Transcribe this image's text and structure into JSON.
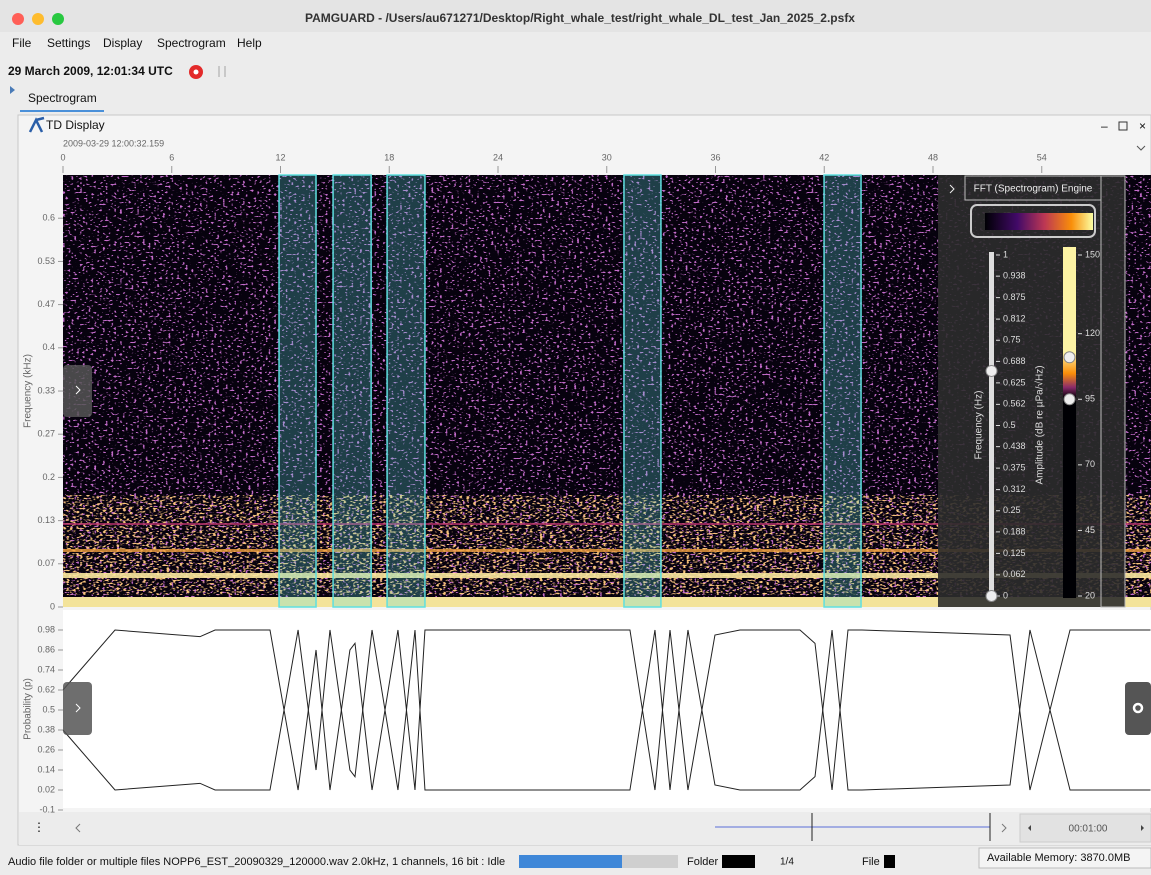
{
  "window": {
    "title": "PAMGUARD - /Users/au671271/Desktop/Right_whale_test/right_whale_DL_test_Jan_2025_2.psfx"
  },
  "menu": [
    "File",
    "Settings",
    "Display",
    "Spectrogram",
    "Help"
  ],
  "toolbar": {
    "clock": "29 March 2009, 12:01:34 UTC"
  },
  "tab": "Spectrogram",
  "panel": {
    "title": "TD Display",
    "start_time": "2009-03-29 12:00:32.159"
  },
  "chart_data": [
    {
      "type": "spectrogram",
      "y_label": "Frequency (kHz)",
      "xlim": [
        0,
        60
      ],
      "xticks": [
        0,
        6,
        12,
        18,
        24,
        30,
        36,
        42,
        48,
        54
      ],
      "ylim": [
        0,
        0.6667
      ],
      "yticks": [
        {
          "value": 0,
          "label": "0"
        },
        {
          "value": 0.0667,
          "label": "0.07"
        },
        {
          "value": 0.1333,
          "label": "0.13"
        },
        {
          "value": 0.2,
          "label": "0.2"
        },
        {
          "value": 0.2667,
          "label": "0.27"
        },
        {
          "value": 0.3333,
          "label": "0.33"
        },
        {
          "value": 0.4,
          "label": "0.4"
        },
        {
          "value": 0.4667,
          "label": "0.47"
        },
        {
          "value": 0.5333,
          "label": "0.53"
        },
        {
          "value": 0.6,
          "label": "0.6"
        }
      ],
      "detection_color": "#5fe0e0",
      "detections": [
        [
          11.92,
          13.96
        ],
        [
          14.9,
          17.0
        ],
        [
          17.88,
          19.97
        ],
        [
          30.95,
          32.99
        ],
        [
          41.99,
          44.03
        ]
      ]
    },
    {
      "type": "line",
      "y_label": "Probability (p)",
      "xlim": [
        0,
        60
      ],
      "ylim": [
        -0.1,
        1.1
      ],
      "yticks": [
        -0.1,
        0.02,
        0.14,
        0.26,
        0.38,
        0.5,
        0.62,
        0.74,
        0.86,
        0.98
      ],
      "x": [
        0,
        2.87,
        7.56,
        8.39,
        11.42,
        12.97,
        13.96,
        14.73,
        15.83,
        16.11,
        17.05,
        18.48,
        19.42,
        19.97,
        31.28,
        32.66,
        33.49,
        34.48,
        35.97,
        37.35,
        40.66,
        41.49,
        42.43,
        43.31,
        44.08,
        52.25,
        53.35,
        55.56,
        60
      ],
      "series": [
        {
          "color": "#222222",
          "values": [
            0.62,
            0.98,
            0.94,
            0.98,
            0.98,
            0.02,
            0.86,
            0.02,
            0.86,
            0.9,
            0.02,
            0.98,
            0.02,
            0.98,
            0.98,
            0.02,
            0.98,
            0.02,
            0.95,
            0.98,
            0.98,
            0.9,
            0.02,
            0.98,
            0.98,
            0.95,
            0.02,
            0.98,
            0.98
          ]
        },
        {
          "color": "#222222",
          "values": [
            0.38,
            0.02,
            0.06,
            0.02,
            0.02,
            0.98,
            0.14,
            0.98,
            0.14,
            0.1,
            0.98,
            0.02,
            0.98,
            0.02,
            0.02,
            0.98,
            0.02,
            0.98,
            0.05,
            0.02,
            0.02,
            0.1,
            0.98,
            0.02,
            0.02,
            0.05,
            0.98,
            0.02,
            0.02
          ]
        }
      ]
    }
  ],
  "side_panel": {
    "title": "FFT (Spectrogram) Engine",
    "freq_label": "Frequency (Hz)",
    "freq_range": [
      0,
      1
    ],
    "freq_ticks": [
      1,
      0.938,
      0.875,
      0.812,
      0.75,
      0.688,
      0.625,
      0.562,
      0.5,
      0.438,
      0.375,
      0.312,
      0.25,
      0.188,
      0.125,
      0.062,
      0
    ],
    "freq_handles": [
      0.66,
      0
    ],
    "amp_label": "Amplitude (dB re µPa/√Hz)",
    "amp_range": [
      20,
      150
    ],
    "amp_ticks": [
      150,
      120,
      95,
      70,
      45,
      20
    ],
    "amp_handles": [
      111,
      95
    ]
  },
  "scroll": {
    "duration": "00:01:00"
  },
  "status": {
    "message": "Audio file folder or multiple files NOPP6_EST_20090329_120000.wav 2.0kHz, 1 channels, 16 bit : Idle",
    "folder": "Folder",
    "count": "1/4",
    "file": "File",
    "memory": "Available Memory: 3870.0MB"
  }
}
